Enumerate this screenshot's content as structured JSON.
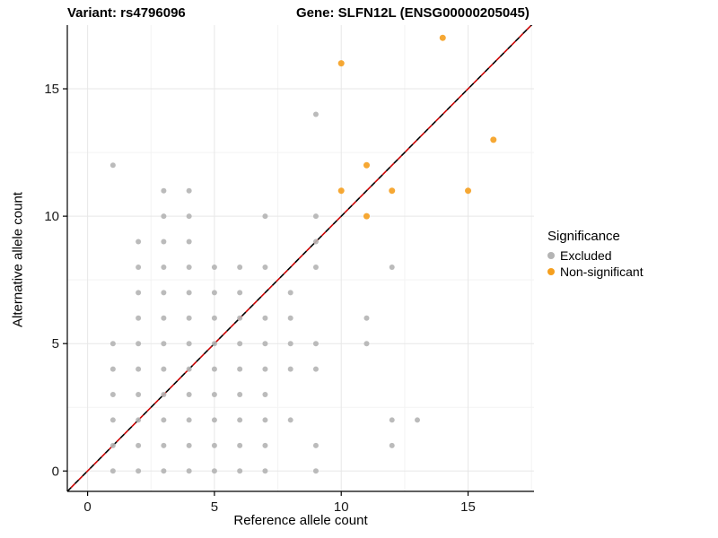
{
  "titles": {
    "left": "Variant: rs4796096",
    "right": "Gene: SLFN12L (ENSG00000205045)"
  },
  "legend": {
    "title": "Significance",
    "items": [
      {
        "label": "Excluded",
        "color": "#b4b4b4"
      },
      {
        "label": "Non-significant",
        "color": "#F59F1E"
      }
    ]
  },
  "chart_data": {
    "type": "scatter",
    "title_left": "Variant: rs4796096",
    "title_right": "Gene: SLFN12L (ENSG00000205045)",
    "xlabel": "Reference allele count",
    "ylabel": "Alternative allele count",
    "xlim": [
      -0.8,
      17.6
    ],
    "ylim": [
      -0.8,
      17.5
    ],
    "xticks": [
      0,
      5,
      10,
      15
    ],
    "yticks": [
      0,
      5,
      10,
      15
    ],
    "grid": true,
    "identity_line": {
      "style": "dashed",
      "colors": [
        "#000000",
        "#CC0000"
      ],
      "slope": 1,
      "intercept": 0
    },
    "series": [
      {
        "name": "Excluded",
        "color": "#b4b4b4",
        "radius": 3,
        "points": [
          [
            1,
            0
          ],
          [
            2,
            0
          ],
          [
            3,
            0
          ],
          [
            4,
            0
          ],
          [
            5,
            0
          ],
          [
            6,
            0
          ],
          [
            7,
            0
          ],
          [
            9,
            0
          ],
          [
            1,
            1
          ],
          [
            2,
            1
          ],
          [
            3,
            1
          ],
          [
            4,
            1
          ],
          [
            5,
            1
          ],
          [
            6,
            1
          ],
          [
            7,
            1
          ],
          [
            9,
            1
          ],
          [
            12,
            1
          ],
          [
            1,
            2
          ],
          [
            2,
            2
          ],
          [
            3,
            2
          ],
          [
            4,
            2
          ],
          [
            5,
            2
          ],
          [
            6,
            2
          ],
          [
            7,
            2
          ],
          [
            8,
            2
          ],
          [
            12,
            2
          ],
          [
            13,
            2
          ],
          [
            1,
            3
          ],
          [
            2,
            3
          ],
          [
            3,
            3
          ],
          [
            4,
            3
          ],
          [
            5,
            3
          ],
          [
            6,
            3
          ],
          [
            7,
            3
          ],
          [
            1,
            4
          ],
          [
            2,
            4
          ],
          [
            3,
            4
          ],
          [
            4,
            4
          ],
          [
            5,
            4
          ],
          [
            6,
            4
          ],
          [
            7,
            4
          ],
          [
            8,
            4
          ],
          [
            9,
            4
          ],
          [
            1,
            5
          ],
          [
            2,
            5
          ],
          [
            3,
            5
          ],
          [
            4,
            5
          ],
          [
            5,
            5
          ],
          [
            6,
            5
          ],
          [
            7,
            5
          ],
          [
            8,
            5
          ],
          [
            9,
            5
          ],
          [
            11,
            5
          ],
          [
            2,
            6
          ],
          [
            3,
            6
          ],
          [
            4,
            6
          ],
          [
            5,
            6
          ],
          [
            6,
            6
          ],
          [
            7,
            6
          ],
          [
            8,
            6
          ],
          [
            11,
            6
          ],
          [
            2,
            7
          ],
          [
            3,
            7
          ],
          [
            4,
            7
          ],
          [
            5,
            7
          ],
          [
            6,
            7
          ],
          [
            8,
            7
          ],
          [
            2,
            8
          ],
          [
            3,
            8
          ],
          [
            4,
            8
          ],
          [
            5,
            8
          ],
          [
            6,
            8
          ],
          [
            7,
            8
          ],
          [
            9,
            8
          ],
          [
            12,
            8
          ],
          [
            2,
            9
          ],
          [
            3,
            9
          ],
          [
            4,
            9
          ],
          [
            9,
            9
          ],
          [
            3,
            10
          ],
          [
            4,
            10
          ],
          [
            7,
            10
          ],
          [
            9,
            10
          ],
          [
            3,
            11
          ],
          [
            4,
            11
          ],
          [
            1,
            12
          ],
          [
            9,
            14
          ]
        ]
      },
      {
        "name": "Non-significant",
        "color": "#F59F1E",
        "radius": 3.5,
        "points": [
          [
            10,
            16
          ],
          [
            14,
            17
          ],
          [
            16,
            13
          ],
          [
            11,
            12
          ],
          [
            10,
            11
          ],
          [
            12,
            11
          ],
          [
            15,
            11
          ],
          [
            11,
            10
          ]
        ]
      }
    ]
  }
}
